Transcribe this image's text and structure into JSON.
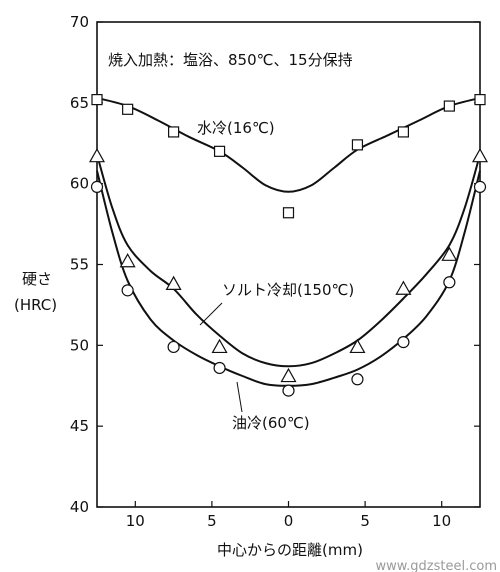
{
  "chart_data": {
    "type": "line",
    "title": "焼入加熱：塩浴、850℃、15分保持",
    "xlabel": "中心からの距離(mm)",
    "ylabel_lines": [
      "硬さ",
      "(HRC)"
    ],
    "xlim": [
      -12.5,
      12.5
    ],
    "ylim": [
      40,
      70
    ],
    "x_ticks": [
      -10,
      -5,
      0,
      5,
      10
    ],
    "x_tick_labels": [
      "10",
      "5",
      "0",
      "5",
      "10"
    ],
    "y_ticks": [
      40,
      45,
      50,
      55,
      60,
      65,
      70
    ],
    "y_tick_labels": [
      "40",
      "45",
      "50",
      "55",
      "60",
      "65",
      "70"
    ],
    "grid": false,
    "series": [
      {
        "name": "水冷(16℃)",
        "marker": "square",
        "points": [
          [
            -12.5,
            65.2
          ],
          [
            -10.5,
            64.6
          ],
          [
            -7.5,
            63.2
          ],
          [
            -4.5,
            62.0
          ],
          [
            0,
            58.2
          ],
          [
            4.5,
            62.4
          ],
          [
            7.5,
            63.2
          ],
          [
            10.5,
            64.8
          ],
          [
            12.5,
            65.2
          ]
        ],
        "curve": [
          [
            -12.5,
            65.3
          ],
          [
            -10.5,
            64.8
          ],
          [
            -8.5,
            63.9
          ],
          [
            -6.5,
            62.9
          ],
          [
            -4.5,
            62.0
          ],
          [
            -3,
            61.0
          ],
          [
            -1.5,
            59.9
          ],
          [
            0,
            59.5
          ],
          [
            1.5,
            59.9
          ],
          [
            3,
            61.0
          ],
          [
            4.5,
            62.1
          ],
          [
            6.5,
            63.0
          ],
          [
            8.5,
            63.9
          ],
          [
            10.5,
            64.8
          ],
          [
            12.5,
            65.3
          ]
        ]
      },
      {
        "name": "ソルト冷却(150℃)",
        "marker": "triangle",
        "points": [
          [
            -12.5,
            61.7
          ],
          [
            -10.5,
            55.2
          ],
          [
            -7.5,
            53.8
          ],
          [
            -4.5,
            49.9
          ],
          [
            0,
            48.1
          ],
          [
            4.5,
            49.9
          ],
          [
            7.5,
            53.5
          ],
          [
            10.5,
            55.6
          ],
          [
            12.5,
            61.7
          ]
        ],
        "curve": [
          [
            -12.5,
            61.8
          ],
          [
            -11.5,
            58.5
          ],
          [
            -10.5,
            56.2
          ],
          [
            -9,
            54.6
          ],
          [
            -7.5,
            53.5
          ],
          [
            -6,
            51.9
          ],
          [
            -4.5,
            50.6
          ],
          [
            -3,
            49.5
          ],
          [
            -1.5,
            48.9
          ],
          [
            0,
            48.7
          ],
          [
            1.5,
            48.9
          ],
          [
            3,
            49.5
          ],
          [
            4.5,
            50.3
          ],
          [
            6,
            51.5
          ],
          [
            7.5,
            52.9
          ],
          [
            9,
            54.4
          ],
          [
            10.5,
            56.2
          ],
          [
            11.5,
            58.5
          ],
          [
            12.5,
            61.8
          ]
        ]
      },
      {
        "name": "油冷(60℃)",
        "marker": "circle",
        "points": [
          [
            -12.5,
            59.8
          ],
          [
            -10.5,
            53.4
          ],
          [
            -7.5,
            49.9
          ],
          [
            -4.5,
            48.6
          ],
          [
            0,
            47.2
          ],
          [
            4.5,
            47.9
          ],
          [
            7.5,
            50.2
          ],
          [
            10.5,
            53.9
          ],
          [
            12.5,
            59.8
          ]
        ],
        "curve": [
          [
            -12.5,
            60.8
          ],
          [
            -11.5,
            57.0
          ],
          [
            -10.5,
            54.0
          ],
          [
            -9,
            51.6
          ],
          [
            -7.5,
            50.3
          ],
          [
            -6,
            49.4
          ],
          [
            -4.5,
            48.7
          ],
          [
            -3,
            48.1
          ],
          [
            -1.5,
            47.6
          ],
          [
            0,
            47.5
          ],
          [
            1.5,
            47.6
          ],
          [
            3,
            48.0
          ],
          [
            4.5,
            48.5
          ],
          [
            6,
            49.3
          ],
          [
            7.5,
            50.4
          ],
          [
            9,
            51.8
          ],
          [
            10.5,
            54.0
          ],
          [
            11.5,
            57.0
          ],
          [
            12.5,
            60.8
          ]
        ]
      }
    ]
  },
  "watermark": "www.gdzsteel.com"
}
